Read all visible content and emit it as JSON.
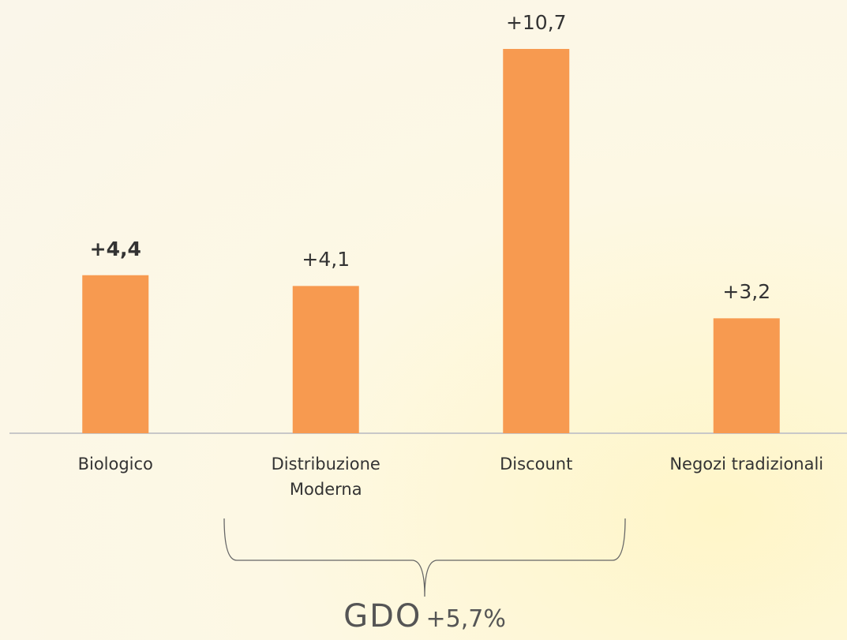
{
  "chart_data": {
    "type": "bar",
    "categories": [
      "Biologico",
      "Distribuzione\nModerna",
      "Discount",
      "Negozi tradizionali"
    ],
    "values": [
      4.4,
      4.1,
      10.7,
      3.2
    ],
    "value_labels": [
      "+4,4",
      "+4,1",
      "+10,7",
      "+3,2"
    ],
    "color": "#f79a50",
    "annotation_title": "GDO",
    "annotation_value": "+5,7%"
  }
}
